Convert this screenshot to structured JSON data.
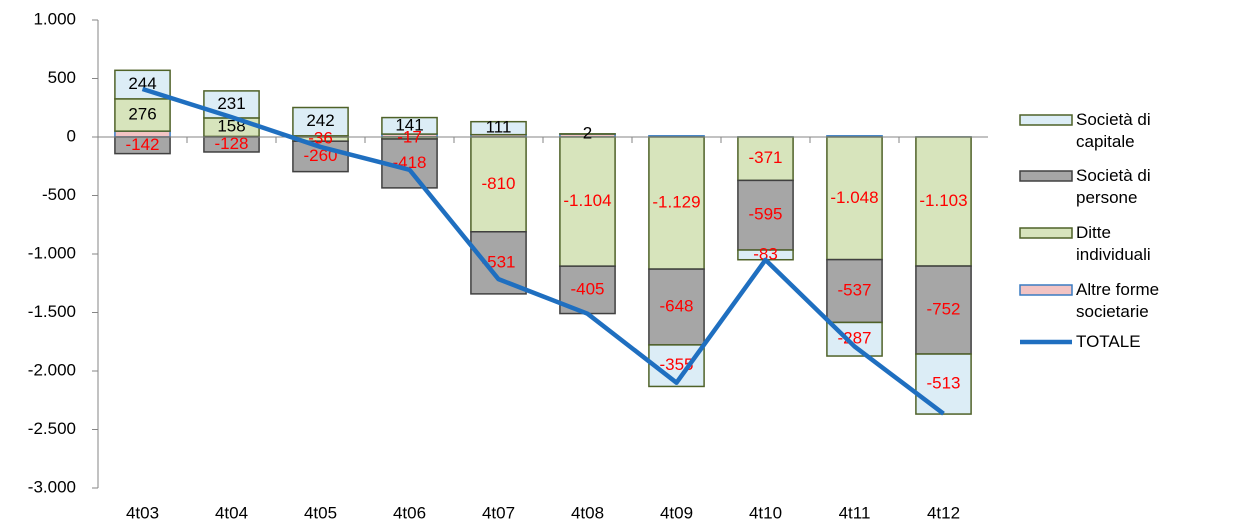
{
  "chart_data": {
    "type": "stacked-bar-line",
    "categories": [
      "4t03",
      "4t04",
      "4t05",
      "4t06",
      "4t07",
      "4t08",
      "4t09",
      "4t10",
      "4t11",
      "4t12"
    ],
    "series": [
      {
        "name": "Società di capitale",
        "color": "#dcedf6",
        "stroke": "#4f6228",
        "values": [
          244,
          231,
          242,
          141,
          111,
          2,
          -355,
          -83,
          -287,
          -513
        ],
        "value_labels": [
          "244",
          "231",
          "242",
          "141",
          "111",
          "2",
          "-355",
          "-83",
          "-287",
          "-513"
        ]
      },
      {
        "name": "Società di persone",
        "color": "#a6a6a6",
        "stroke": "#404040",
        "values": [
          -142,
          -128,
          -260,
          -418,
          -531,
          -405,
          -648,
          -595,
          -537,
          -752
        ],
        "value_labels": [
          "-142",
          "-128",
          "-260",
          "-418",
          "-531",
          "-405",
          "-648",
          "-595",
          "-537",
          "-752"
        ]
      },
      {
        "name": "Ditte individuali",
        "color": "#d7e4bc",
        "stroke": "#4f6228",
        "values": [
          276,
          158,
          -36,
          -17,
          -810,
          -1104,
          -1129,
          -371,
          -1048,
          -1103
        ],
        "value_labels": [
          "276",
          "158",
          "-36",
          "-17",
          "-810",
          "-1.104",
          "-1.129",
          "-371",
          "-1.048",
          "-1.103"
        ]
      },
      {
        "name": "Altre forme societarie",
        "color": "#f2c4c4",
        "stroke": "#3a7cc2",
        "values": [
          50,
          5,
          10,
          25,
          20,
          25,
          10,
          0,
          10,
          0
        ]
      },
      {
        "name": "TOTALE",
        "color": "#1f6fc0",
        "kind": "line",
        "values": [
          410,
          170,
          -85,
          -280,
          -1215,
          -1510,
          -2100,
          -1050,
          -1790,
          -2365
        ]
      }
    ],
    "ylim": [
      -3000,
      1000
    ],
    "yticks": [
      {
        "value": 1000,
        "label": "1.000"
      },
      500,
      0,
      -500,
      {
        "value": -1000,
        "label": "-1.000"
      },
      {
        "value": -1500,
        "label": "-1.500"
      },
      {
        "value": -2000,
        "label": "-2.000"
      },
      {
        "value": -2500,
        "label": "-2.500"
      },
      {
        "value": -3000,
        "label": "-3.000"
      }
    ]
  }
}
